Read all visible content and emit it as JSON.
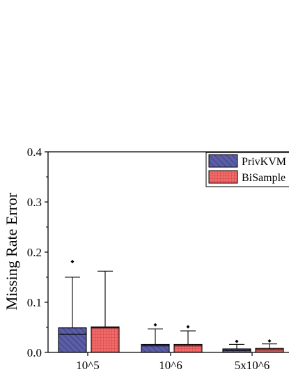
{
  "chart_data": {
    "type": "box",
    "title": "",
    "xlabel": "",
    "ylabel": "Missing Rate Error",
    "ylim": [
      0,
      0.4
    ],
    "yticks": [
      "0.0",
      "0.1",
      "0.2",
      "0.3",
      "0.4"
    ],
    "categories": [
      "10^5",
      "10^6",
      "5x10^6"
    ],
    "legend_position": "top-right",
    "grid": false,
    "series": [
      {
        "name": "PrivKVM",
        "color": "#5b5ea6",
        "pattern": "diagonal-hatch",
        "boxes": [
          {
            "whisker_low": 0.0,
            "q1": 0.0,
            "median": 0.036,
            "q3": 0.049,
            "whisker_high": 0.15,
            "outlier": 0.181
          },
          {
            "whisker_low": 0.0,
            "q1": 0.0,
            "median": 0.013,
            "q3": 0.016,
            "whisker_high": 0.047,
            "outlier": 0.055
          },
          {
            "whisker_low": 0.0,
            "q1": 0.0,
            "median": 0.004,
            "q3": 0.007,
            "whisker_high": 0.016,
            "outlier": 0.022
          }
        ]
      },
      {
        "name": "BiSample",
        "color": "#f26a6a",
        "pattern": "grid-hatch",
        "boxes": [
          {
            "whisker_low": 0.0,
            "q1": 0.0,
            "median": 0.049,
            "q3": 0.051,
            "whisker_high": 0.162,
            "outlier": null
          },
          {
            "whisker_low": 0.0,
            "q1": 0.0,
            "median": 0.013,
            "q3": 0.016,
            "whisker_high": 0.043,
            "outlier": 0.051
          },
          {
            "whisker_low": 0.0,
            "q1": 0.0,
            "median": 0.005,
            "q3": 0.008,
            "whisker_high": 0.017,
            "outlier": 0.023
          }
        ]
      }
    ]
  }
}
